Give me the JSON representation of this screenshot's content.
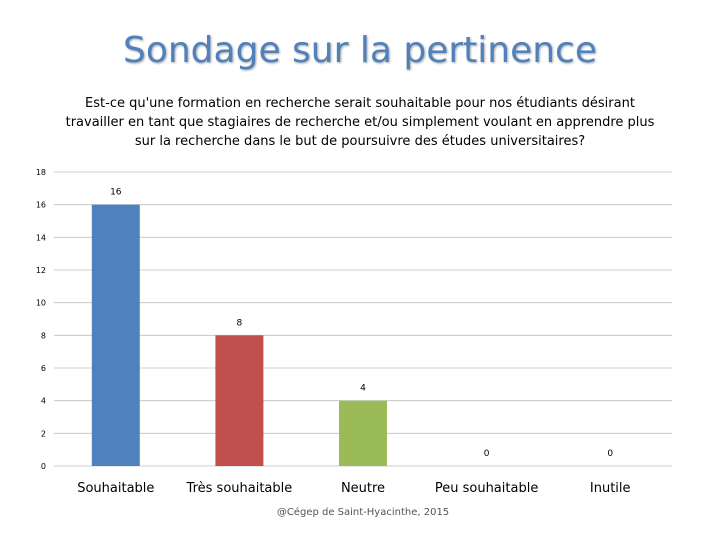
{
  "slide_title": "Sondage sur la pertinence",
  "footer": "@Cégep de Saint-Hyacinthe, 2015",
  "chart_data": {
    "type": "bar",
    "title": "Est-ce qu'une formation en recherche serait souhaitable pour nos étudiants désirant travailler en tant que stagiaires de recherche et/ou simplement voulant en apprendre plus sur la recherche dans le but de poursuivre des études universitaires?",
    "categories": [
      "Souhaitable",
      "Très souhaitable",
      "Neutre",
      "Peu souhaitable",
      "Inutile"
    ],
    "values": [
      16,
      8,
      4,
      0,
      0
    ],
    "colors": [
      "#4f81bd",
      "#c0504d",
      "#9bbb59",
      "#8064a2",
      "#4bacc6"
    ],
    "ylim": [
      0,
      18
    ],
    "yticks": [
      0,
      2,
      4,
      6,
      8,
      10,
      12,
      14,
      16,
      18
    ],
    "grid": true,
    "legend": "none",
    "xlabel": "",
    "ylabel": ""
  }
}
